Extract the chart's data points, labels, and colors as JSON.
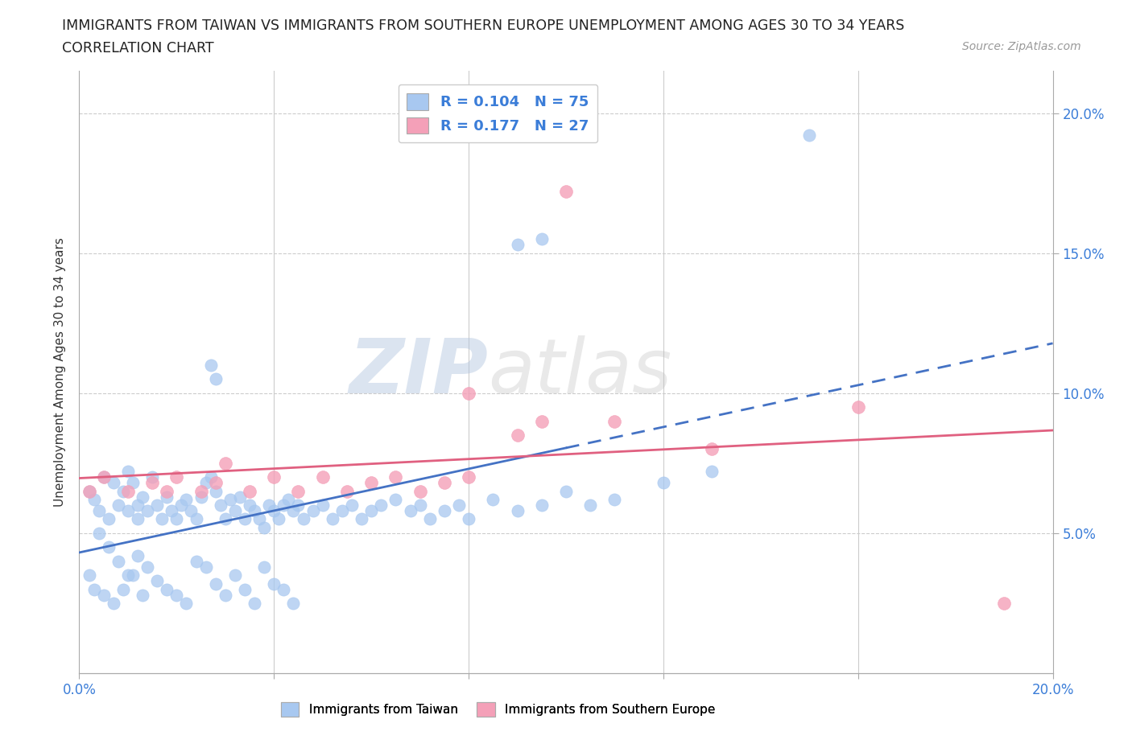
{
  "title_line1": "IMMIGRANTS FROM TAIWAN VS IMMIGRANTS FROM SOUTHERN EUROPE UNEMPLOYMENT AMONG AGES 30 TO 34 YEARS",
  "title_line2": "CORRELATION CHART",
  "source": "Source: ZipAtlas.com",
  "ylabel": "Unemployment Among Ages 30 to 34 years",
  "xlim": [
    0.0,
    0.2
  ],
  "ylim": [
    0.0,
    0.215
  ],
  "taiwan_color": "#a8c8f0",
  "southern_europe_color": "#f4a0b8",
  "taiwan_R": 0.104,
  "taiwan_N": 75,
  "southern_europe_R": 0.177,
  "southern_europe_N": 27,
  "taiwan_line_color": "#4472c4",
  "southern_europe_line_color": "#e06080",
  "watermark_zip": "ZIP",
  "watermark_atlas": "atlas",
  "taiwan_x": [
    0.002,
    0.003,
    0.004,
    0.005,
    0.006,
    0.007,
    0.008,
    0.009,
    0.01,
    0.01,
    0.011,
    0.012,
    0.012,
    0.013,
    0.014,
    0.015,
    0.016,
    0.017,
    0.018,
    0.019,
    0.02,
    0.021,
    0.022,
    0.023,
    0.024,
    0.025,
    0.026,
    0.027,
    0.028,
    0.029,
    0.03,
    0.031,
    0.032,
    0.033,
    0.034,
    0.035,
    0.036,
    0.037,
    0.038,
    0.039,
    0.04,
    0.041,
    0.042,
    0.043,
    0.044,
    0.045,
    0.046,
    0.048,
    0.05,
    0.052,
    0.054,
    0.056,
    0.058,
    0.06,
    0.062,
    0.065,
    0.068,
    0.07,
    0.072,
    0.075,
    0.078,
    0.08,
    0.085,
    0.09,
    0.095,
    0.1,
    0.105,
    0.11,
    0.12,
    0.13,
    0.027,
    0.028,
    0.09,
    0.095,
    0.15
  ],
  "taiwan_y": [
    0.065,
    0.062,
    0.058,
    0.07,
    0.055,
    0.068,
    0.06,
    0.065,
    0.072,
    0.058,
    0.068,
    0.06,
    0.055,
    0.063,
    0.058,
    0.07,
    0.06,
    0.055,
    0.063,
    0.058,
    0.055,
    0.06,
    0.062,
    0.058,
    0.055,
    0.063,
    0.068,
    0.07,
    0.065,
    0.06,
    0.055,
    0.062,
    0.058,
    0.063,
    0.055,
    0.06,
    0.058,
    0.055,
    0.052,
    0.06,
    0.058,
    0.055,
    0.06,
    0.062,
    0.058,
    0.06,
    0.055,
    0.058,
    0.06,
    0.055,
    0.058,
    0.06,
    0.055,
    0.058,
    0.06,
    0.062,
    0.058,
    0.06,
    0.055,
    0.058,
    0.06,
    0.055,
    0.062,
    0.058,
    0.06,
    0.065,
    0.06,
    0.062,
    0.068,
    0.072,
    0.11,
    0.105,
    0.153,
    0.155,
    0.192
  ],
  "taiwan_y_low": [
    0.05,
    0.045,
    0.04,
    0.035,
    0.042,
    0.038,
    0.033,
    0.03,
    0.028,
    0.025,
    0.04,
    0.038,
    0.032,
    0.028,
    0.035,
    0.03,
    0.025,
    0.038,
    0.032,
    0.03,
    0.025,
    0.035,
    0.03,
    0.028,
    0.025,
    0.03,
    0.035,
    0.028
  ],
  "taiwan_x_low": [
    0.004,
    0.006,
    0.008,
    0.01,
    0.012,
    0.014,
    0.016,
    0.018,
    0.02,
    0.022,
    0.024,
    0.026,
    0.028,
    0.03,
    0.032,
    0.034,
    0.036,
    0.038,
    0.04,
    0.042,
    0.044,
    0.002,
    0.003,
    0.005,
    0.007,
    0.009,
    0.011,
    0.013
  ],
  "se_x": [
    0.002,
    0.005,
    0.01,
    0.015,
    0.018,
    0.02,
    0.025,
    0.028,
    0.03,
    0.035,
    0.04,
    0.045,
    0.05,
    0.055,
    0.06,
    0.065,
    0.07,
    0.075,
    0.08,
    0.09,
    0.095,
    0.1,
    0.11,
    0.13,
    0.16,
    0.08,
    0.19
  ],
  "se_y": [
    0.065,
    0.07,
    0.065,
    0.068,
    0.065,
    0.07,
    0.065,
    0.068,
    0.075,
    0.065,
    0.07,
    0.065,
    0.07,
    0.065,
    0.068,
    0.07,
    0.065,
    0.068,
    0.07,
    0.085,
    0.09,
    0.172,
    0.09,
    0.08,
    0.095,
    0.1,
    0.025
  ]
}
